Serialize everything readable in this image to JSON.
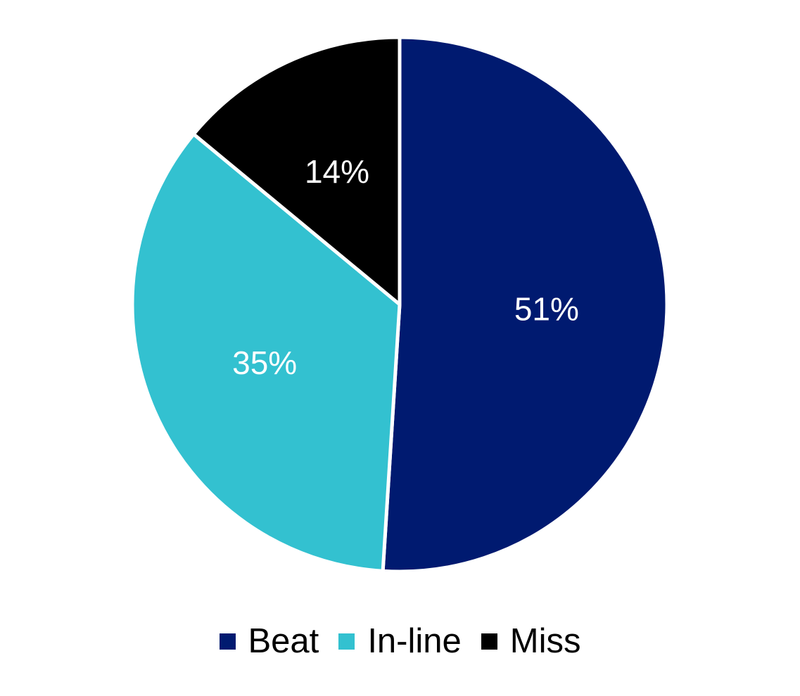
{
  "chart_data": {
    "type": "pie",
    "categories": [
      "Beat",
      "In-line",
      "Miss"
    ],
    "values": [
      51,
      35,
      14
    ],
    "value_labels": [
      "51%",
      "35%",
      "14%"
    ],
    "colors": [
      "#001a70",
      "#33c1d0",
      "#000000"
    ],
    "start": "12 o'clock, clockwise",
    "legend_position": "bottom"
  }
}
